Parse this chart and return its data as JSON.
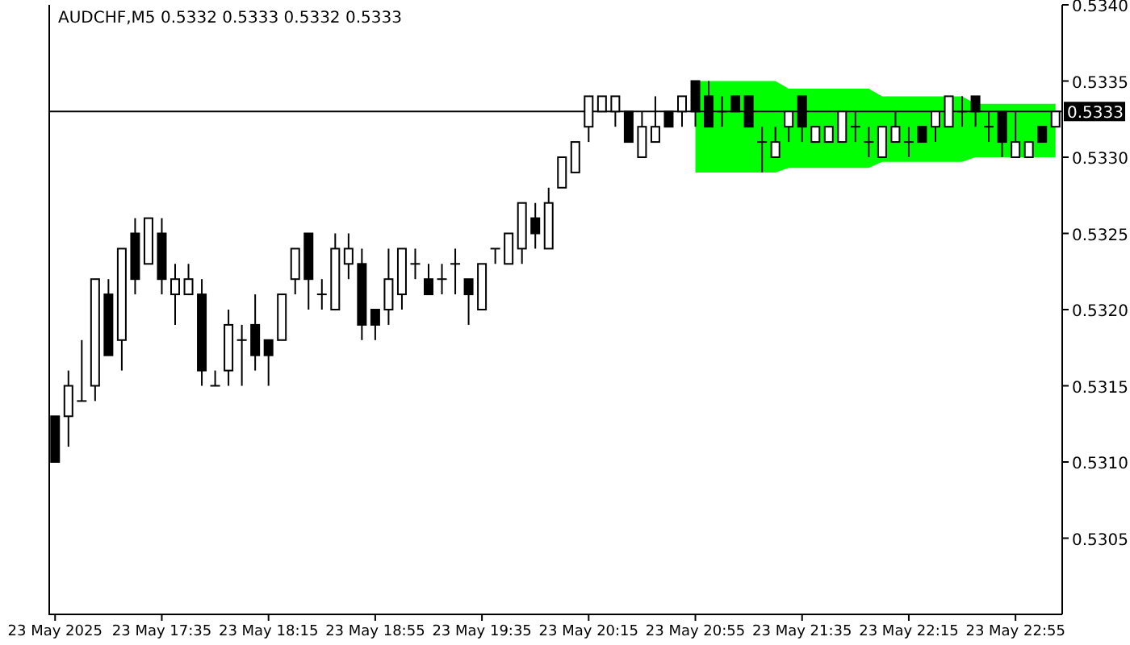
{
  "chart_data": {
    "type": "candlestick",
    "title": "AUDCHF,M5 0.5332 0.5333 0.5332 0.5333",
    "color": "#000000",
    "categories": [
      "23 May 2025",
      null,
      null,
      null,
      null,
      null,
      null,
      null,
      "23 May 17:35",
      null,
      null,
      null,
      null,
      null,
      null,
      null,
      "23 May 18:15",
      null,
      null,
      null,
      null,
      null,
      null,
      null,
      "23 May 18:55",
      null,
      null,
      null,
      null,
      null,
      null,
      null,
      "23 May 19:35",
      null,
      null,
      null,
      null,
      null,
      null,
      null,
      "23 May 20:15",
      null,
      null,
      null,
      null,
      null,
      null,
      null,
      "23 May 20:55",
      null,
      null,
      null,
      null,
      null,
      null,
      null,
      "23 May 21:35",
      null,
      null,
      null,
      null,
      null,
      null,
      null,
      "23 May 22:15",
      null,
      null,
      null,
      null,
      null,
      null,
      null,
      "23 May 22:55",
      null,
      null,
      null
    ],
    "ohlc": [
      [
        0.5313,
        0.5313,
        0.531,
        0.531
      ],
      [
        0.5313,
        0.5316,
        0.5311,
        0.5315
      ],
      [
        0.5314,
        0.5318,
        0.5314,
        0.5314
      ],
      [
        0.5315,
        0.5322,
        0.5314,
        0.5322
      ],
      [
        0.5321,
        0.5322,
        0.5317,
        0.5317
      ],
      [
        0.5318,
        0.5324,
        0.5316,
        0.5324
      ],
      [
        0.5325,
        0.5326,
        0.5321,
        0.5322
      ],
      [
        0.5323,
        0.5326,
        0.5323,
        0.5326
      ],
      [
        0.5325,
        0.5326,
        0.5321,
        0.5322
      ],
      [
        0.5321,
        0.5323,
        0.5319,
        0.5322
      ],
      [
        0.5321,
        0.5323,
        0.5321,
        0.5322
      ],
      [
        0.5321,
        0.5322,
        0.5315,
        0.5316
      ],
      [
        0.5315,
        0.5316,
        0.5315,
        0.5315
      ],
      [
        0.5316,
        0.532,
        0.5315,
        0.5319
      ],
      [
        0.5318,
        0.5319,
        0.5315,
        0.5318
      ],
      [
        0.5319,
        0.5321,
        0.5316,
        0.5317
      ],
      [
        0.5318,
        0.5318,
        0.5315,
        0.5317
      ],
      [
        0.5318,
        0.5321,
        0.5318,
        0.5321
      ],
      [
        0.5322,
        0.5324,
        0.5321,
        0.5324
      ],
      [
        0.5325,
        0.5325,
        0.532,
        0.5322
      ],
      [
        0.5321,
        0.5322,
        0.532,
        0.5321
      ],
      [
        0.532,
        0.5325,
        0.532,
        0.5324
      ],
      [
        0.5323,
        0.5325,
        0.5322,
        0.5324
      ],
      [
        0.5323,
        0.5324,
        0.5318,
        0.5319
      ],
      [
        0.532,
        0.532,
        0.5318,
        0.5319
      ],
      [
        0.532,
        0.5324,
        0.5319,
        0.5322
      ],
      [
        0.5321,
        0.5324,
        0.532,
        0.5324
      ],
      [
        0.5323,
        0.5324,
        0.5322,
        0.5323
      ],
      [
        0.5322,
        0.5323,
        0.5321,
        0.5321
      ],
      [
        0.5322,
        0.5323,
        0.5321,
        0.5322
      ],
      [
        0.5323,
        0.5324,
        0.5321,
        0.5323
      ],
      [
        0.5322,
        0.5322,
        0.5319,
        0.5321
      ],
      [
        0.532,
        0.5323,
        0.532,
        0.5323
      ],
      [
        0.5324,
        0.5324,
        0.5323,
        0.5324
      ],
      [
        0.5323,
        0.5325,
        0.5323,
        0.5325
      ],
      [
        0.5324,
        0.5327,
        0.5323,
        0.5327
      ],
      [
        0.5326,
        0.5327,
        0.5324,
        0.5325
      ],
      [
        0.5324,
        0.5328,
        0.5324,
        0.5327
      ],
      [
        0.5328,
        0.533,
        0.5328,
        0.533
      ],
      [
        0.5329,
        0.5331,
        0.5329,
        0.5331
      ],
      [
        0.5332,
        0.5334,
        0.5331,
        0.5334
      ],
      [
        0.5333,
        0.5334,
        0.5333,
        0.5334
      ],
      [
        0.5333,
        0.5334,
        0.5332,
        0.5334
      ],
      [
        0.5333,
        0.5333,
        0.5331,
        0.5331
      ],
      [
        0.533,
        0.5333,
        0.533,
        0.5332
      ],
      [
        0.5331,
        0.5334,
        0.5331,
        0.5332
      ],
      [
        0.5333,
        0.5333,
        0.5332,
        0.5332
      ],
      [
        0.5333,
        0.5334,
        0.5332,
        0.5334
      ],
      [
        0.5335,
        0.5335,
        0.5332,
        0.5333
      ],
      [
        0.5334,
        0.5335,
        0.5332,
        0.5332
      ],
      [
        0.5333,
        0.5334,
        0.5332,
        0.5333
      ],
      [
        0.5334,
        0.5334,
        0.5333,
        0.5333
      ],
      [
        0.5334,
        0.5334,
        0.5332,
        0.5332
      ],
      [
        0.5331,
        0.5332,
        0.5329,
        0.5331
      ],
      [
        0.533,
        0.5332,
        0.533,
        0.5331
      ],
      [
        0.5332,
        0.5333,
        0.5331,
        0.5333
      ],
      [
        0.5334,
        0.5334,
        0.5331,
        0.5332
      ],
      [
        0.5331,
        0.5332,
        0.5331,
        0.5332
      ],
      [
        0.5331,
        0.5332,
        0.5331,
        0.5332
      ],
      [
        0.5331,
        0.5333,
        0.5331,
        0.5333
      ],
      [
        0.5332,
        0.5333,
        0.5331,
        0.5332
      ],
      [
        0.5331,
        0.5332,
        0.533,
        0.5331
      ],
      [
        0.533,
        0.5332,
        0.533,
        0.5332
      ],
      [
        0.5331,
        0.5333,
        0.5331,
        0.5332
      ],
      [
        0.5331,
        0.5332,
        0.533,
        0.5331
      ],
      [
        0.5332,
        0.5332,
        0.5331,
        0.5331
      ],
      [
        0.5332,
        0.5333,
        0.5331,
        0.5333
      ],
      [
        0.5332,
        0.5334,
        0.5332,
        0.5334
      ],
      [
        0.5333,
        0.5334,
        0.5332,
        0.5333
      ],
      [
        0.5334,
        0.5334,
        0.5332,
        0.5333
      ],
      [
        0.5332,
        0.5333,
        0.5331,
        0.5332
      ],
      [
        0.5333,
        0.5333,
        0.533,
        0.5331
      ],
      [
        0.533,
        0.5333,
        0.533,
        0.5331
      ],
      [
        0.533,
        0.5331,
        0.533,
        0.5331
      ],
      [
        0.5332,
        0.5332,
        0.5331,
        0.5331
      ],
      [
        0.5332,
        0.5333,
        0.5332,
        0.5333
      ]
    ],
    "series": [
      {
        "type": "line",
        "color": "#00ff00",
        "values": [
          null,
          null,
          null,
          null,
          null,
          null,
          null,
          null,
          null,
          null,
          null,
          null,
          null,
          null,
          null,
          null,
          null,
          null,
          null,
          null,
          null,
          null,
          null,
          null,
          null,
          null,
          null,
          null,
          null,
          null,
          null,
          null,
          null,
          null,
          null,
          null,
          null,
          null,
          null,
          null,
          null,
          null,
          null,
          null,
          null,
          null,
          null,
          null,
          null,
          null,
          null,
          null,
          null,
          null,
          null,
          null,
          null,
          null,
          null,
          null,
          null,
          null,
          null,
          null,
          null,
          null,
          null,
          null,
          null,
          null,
          null,
          null,
          null,
          null,
          null,
          null
        ],
        "upper": [
          null,
          null,
          null,
          null,
          null,
          null,
          null,
          null,
          null,
          null,
          null,
          null,
          null,
          null,
          null,
          null,
          null,
          null,
          null,
          null,
          null,
          null,
          null,
          null,
          null,
          null,
          null,
          null,
          null,
          null,
          null,
          null,
          null,
          null,
          null,
          null,
          null,
          null,
          null,
          null,
          null,
          null,
          null,
          null,
          null,
          null,
          null,
          null,
          0.5335,
          0.5335,
          0.5335,
          0.5335,
          0.5335,
          0.5335,
          0.5335,
          0.53345,
          0.53345,
          0.53345,
          0.53345,
          0.53345,
          0.53345,
          0.53345,
          0.5334,
          0.5334,
          0.5334,
          0.5334,
          0.5334,
          0.5334,
          0.5334,
          0.53335,
          0.53335,
          0.53335,
          0.53335,
          0.53335,
          0.53335,
          0.53335
        ],
        "lower": [
          null,
          null,
          null,
          null,
          null,
          null,
          null,
          null,
          null,
          null,
          null,
          null,
          null,
          null,
          null,
          null,
          null,
          null,
          null,
          null,
          null,
          null,
          null,
          null,
          null,
          null,
          null,
          null,
          null,
          null,
          null,
          null,
          null,
          null,
          null,
          null,
          null,
          null,
          null,
          null,
          null,
          null,
          null,
          null,
          null,
          null,
          null,
          null,
          0.5329,
          0.5329,
          0.5329,
          0.5329,
          0.5329,
          0.5329,
          0.5329,
          0.53293,
          0.53293,
          0.53293,
          0.53293,
          0.53293,
          0.53293,
          0.53293,
          0.53297,
          0.53297,
          0.53297,
          0.53297,
          0.53297,
          0.53297,
          0.53297,
          0.533,
          0.533,
          0.533,
          0.533,
          0.533,
          0.533,
          0.533
        ]
      }
    ],
    "ylim": [
      0.53,
      0.534
    ],
    "yticks": [
      0.5305,
      {
        "value": 0.531,
        "label": "0.5310"
      },
      0.5315,
      {
        "value": 0.532,
        "label": "0.5320"
      },
      0.5325,
      {
        "value": 0.533,
        "label": "0.5330"
      },
      0.5335,
      {
        "value": 0.534,
        "label": "0.5340"
      }
    ],
    "ref_lines": [
      {
        "axis": "y",
        "value": 0.5333,
        "label": "0.5333",
        "color": "#000000"
      }
    ],
    "grid": false
  }
}
